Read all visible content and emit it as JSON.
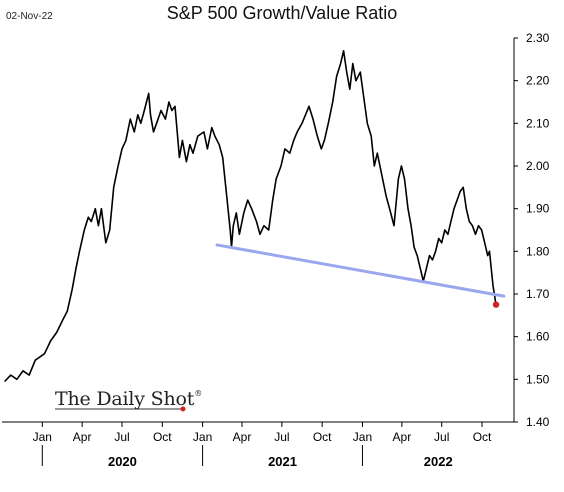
{
  "date_stamp": "02-Nov-22",
  "brand": {
    "name": "The Daily Shot",
    "mark": "®"
  },
  "colors": {
    "line": "#000000",
    "trendline": "#9aa7ee",
    "last_point": "#d32020",
    "axis": "#000000"
  },
  "chart_data": {
    "type": "line",
    "title": "S&P 500 Growth/Value Ratio",
    "xlabel": "",
    "ylabel": "",
    "ylim": [
      1.4,
      2.3
    ],
    "yticks": [
      "2.30",
      "2.20",
      "2.10",
      "2.00",
      "1.90",
      "1.80",
      "1.70",
      "1.60",
      "1.50",
      "1.40"
    ],
    "y_axis_side": "right",
    "grid": false,
    "month_ticks": [
      {
        "date": "2020-01-01",
        "label": "Jan"
      },
      {
        "date": "2020-04-01",
        "label": "Apr"
      },
      {
        "date": "2020-07-01",
        "label": "Jul"
      },
      {
        "date": "2020-10-01",
        "label": "Oct"
      },
      {
        "date": "2021-01-01",
        "label": "Jan"
      },
      {
        "date": "2021-04-01",
        "label": "Apr"
      },
      {
        "date": "2021-07-01",
        "label": "Jul"
      },
      {
        "date": "2021-10-01",
        "label": "Oct"
      },
      {
        "date": "2022-01-01",
        "label": "Jan"
      },
      {
        "date": "2022-04-01",
        "label": "Apr"
      },
      {
        "date": "2022-07-01",
        "label": "Jul"
      },
      {
        "date": "2022-10-01",
        "label": "Oct"
      }
    ],
    "years": [
      {
        "label": "2020",
        "start": "2020-01-01",
        "end": "2021-01-01"
      },
      {
        "label": "2021",
        "start": "2021-01-01",
        "end": "2022-01-01"
      },
      {
        "label": "2022",
        "start": "2022-01-01",
        "end": "2022-12-31"
      }
    ],
    "series": [
      {
        "values": [
          [
            "2019-10-07",
            1.495
          ],
          [
            "2019-10-21",
            1.51
          ],
          [
            "2019-11-04",
            1.5
          ],
          [
            "2019-11-18",
            1.52
          ],
          [
            "2019-12-02",
            1.51
          ],
          [
            "2019-12-16",
            1.545
          ],
          [
            "2020-01-06",
            1.56
          ],
          [
            "2020-01-20",
            1.59
          ],
          [
            "2020-02-03",
            1.61
          ],
          [
            "2020-02-17",
            1.64
          ],
          [
            "2020-02-27",
            1.66
          ],
          [
            "2020-03-09",
            1.71
          ],
          [
            "2020-03-18",
            1.76
          ],
          [
            "2020-03-26",
            1.8
          ],
          [
            "2020-04-06",
            1.85
          ],
          [
            "2020-04-15",
            1.88
          ],
          [
            "2020-04-22",
            1.87
          ],
          [
            "2020-05-01",
            1.9
          ],
          [
            "2020-05-08",
            1.86
          ],
          [
            "2020-05-15",
            1.9
          ],
          [
            "2020-05-25",
            1.82
          ],
          [
            "2020-06-03",
            1.85
          ],
          [
            "2020-06-12",
            1.95
          ],
          [
            "2020-06-22",
            2.0
          ],
          [
            "2020-07-01",
            2.04
          ],
          [
            "2020-07-10",
            2.06
          ],
          [
            "2020-07-20",
            2.11
          ],
          [
            "2020-07-29",
            2.08
          ],
          [
            "2020-08-06",
            2.12
          ],
          [
            "2020-08-13",
            2.1
          ],
          [
            "2020-08-21",
            2.13
          ],
          [
            "2020-08-31",
            2.17
          ],
          [
            "2020-09-04",
            2.12
          ],
          [
            "2020-09-11",
            2.08
          ],
          [
            "2020-09-18",
            2.1
          ],
          [
            "2020-09-28",
            2.13
          ],
          [
            "2020-10-08",
            2.11
          ],
          [
            "2020-10-16",
            2.15
          ],
          [
            "2020-10-23",
            2.13
          ],
          [
            "2020-10-30",
            2.14
          ],
          [
            "2020-11-09",
            2.02
          ],
          [
            "2020-11-16",
            2.06
          ],
          [
            "2020-11-25",
            2.01
          ],
          [
            "2020-12-03",
            2.05
          ],
          [
            "2020-12-10",
            2.03
          ],
          [
            "2020-12-21",
            2.07
          ],
          [
            "2021-01-04",
            2.08
          ],
          [
            "2021-01-12",
            2.04
          ],
          [
            "2021-01-22",
            2.09
          ],
          [
            "2021-01-29",
            2.07
          ],
          [
            "2021-02-08",
            2.05
          ],
          [
            "2021-02-16",
            2.02
          ],
          [
            "2021-02-25",
            1.93
          ],
          [
            "2021-03-05",
            1.85
          ],
          [
            "2021-03-08",
            1.81
          ],
          [
            "2021-03-12",
            1.86
          ],
          [
            "2021-03-19",
            1.89
          ],
          [
            "2021-03-26",
            1.84
          ],
          [
            "2021-04-05",
            1.89
          ],
          [
            "2021-04-14",
            1.92
          ],
          [
            "2021-04-23",
            1.9
          ],
          [
            "2021-05-04",
            1.87
          ],
          [
            "2021-05-12",
            1.84
          ],
          [
            "2021-05-21",
            1.86
          ],
          [
            "2021-06-01",
            1.85
          ],
          [
            "2021-06-10",
            1.92
          ],
          [
            "2021-06-18",
            1.97
          ],
          [
            "2021-06-29",
            2.0
          ],
          [
            "2021-07-08",
            2.04
          ],
          [
            "2021-07-19",
            2.03
          ],
          [
            "2021-07-28",
            2.06
          ],
          [
            "2021-08-05",
            2.08
          ],
          [
            "2021-08-16",
            2.1
          ],
          [
            "2021-08-24",
            2.12
          ],
          [
            "2021-09-01",
            2.14
          ],
          [
            "2021-09-10",
            2.11
          ],
          [
            "2021-09-20",
            2.07
          ],
          [
            "2021-09-29",
            2.04
          ],
          [
            "2021-10-06",
            2.06
          ],
          [
            "2021-10-15",
            2.1
          ],
          [
            "2021-10-25",
            2.15
          ],
          [
            "2021-11-03",
            2.21
          ],
          [
            "2021-11-12",
            2.24
          ],
          [
            "2021-11-19",
            2.27
          ],
          [
            "2021-11-26",
            2.22
          ],
          [
            "2021-12-03",
            2.18
          ],
          [
            "2021-12-10",
            2.24
          ],
          [
            "2021-12-17",
            2.2
          ],
          [
            "2021-12-27",
            2.22
          ],
          [
            "2022-01-04",
            2.16
          ],
          [
            "2022-01-12",
            2.1
          ],
          [
            "2022-01-21",
            2.07
          ],
          [
            "2022-01-28",
            2.0
          ],
          [
            "2022-02-04",
            2.03
          ],
          [
            "2022-02-14",
            1.98
          ],
          [
            "2022-02-24",
            1.93
          ],
          [
            "2022-03-04",
            1.9
          ],
          [
            "2022-03-14",
            1.86
          ],
          [
            "2022-03-24",
            1.97
          ],
          [
            "2022-03-31",
            2.0
          ],
          [
            "2022-04-07",
            1.97
          ],
          [
            "2022-04-15",
            1.9
          ],
          [
            "2022-04-22",
            1.86
          ],
          [
            "2022-04-29",
            1.81
          ],
          [
            "2022-05-06",
            1.79
          ],
          [
            "2022-05-13",
            1.76
          ],
          [
            "2022-05-20",
            1.73
          ],
          [
            "2022-05-27",
            1.76
          ],
          [
            "2022-06-03",
            1.79
          ],
          [
            "2022-06-10",
            1.78
          ],
          [
            "2022-06-17",
            1.8
          ],
          [
            "2022-06-24",
            1.83
          ],
          [
            "2022-07-01",
            1.82
          ],
          [
            "2022-07-08",
            1.85
          ],
          [
            "2022-07-15",
            1.84
          ],
          [
            "2022-07-22",
            1.87
          ],
          [
            "2022-07-29",
            1.9
          ],
          [
            "2022-08-05",
            1.92
          ],
          [
            "2022-08-12",
            1.94
          ],
          [
            "2022-08-19",
            1.95
          ],
          [
            "2022-08-26",
            1.9
          ],
          [
            "2022-09-02",
            1.87
          ],
          [
            "2022-09-09",
            1.86
          ],
          [
            "2022-09-16",
            1.84
          ],
          [
            "2022-09-23",
            1.86
          ],
          [
            "2022-09-30",
            1.85
          ],
          [
            "2022-10-07",
            1.82
          ],
          [
            "2022-10-14",
            1.79
          ],
          [
            "2022-10-18",
            1.8
          ],
          [
            "2022-10-21",
            1.77
          ],
          [
            "2022-10-26",
            1.72
          ],
          [
            "2022-11-02",
            1.675
          ]
        ]
      }
    ],
    "trendline": {
      "start": [
        "2021-02-03",
        1.815
      ],
      "end": [
        "2022-11-20",
        1.695
      ]
    },
    "last_point": {
      "date": "2022-11-02",
      "value": 1.675
    }
  }
}
